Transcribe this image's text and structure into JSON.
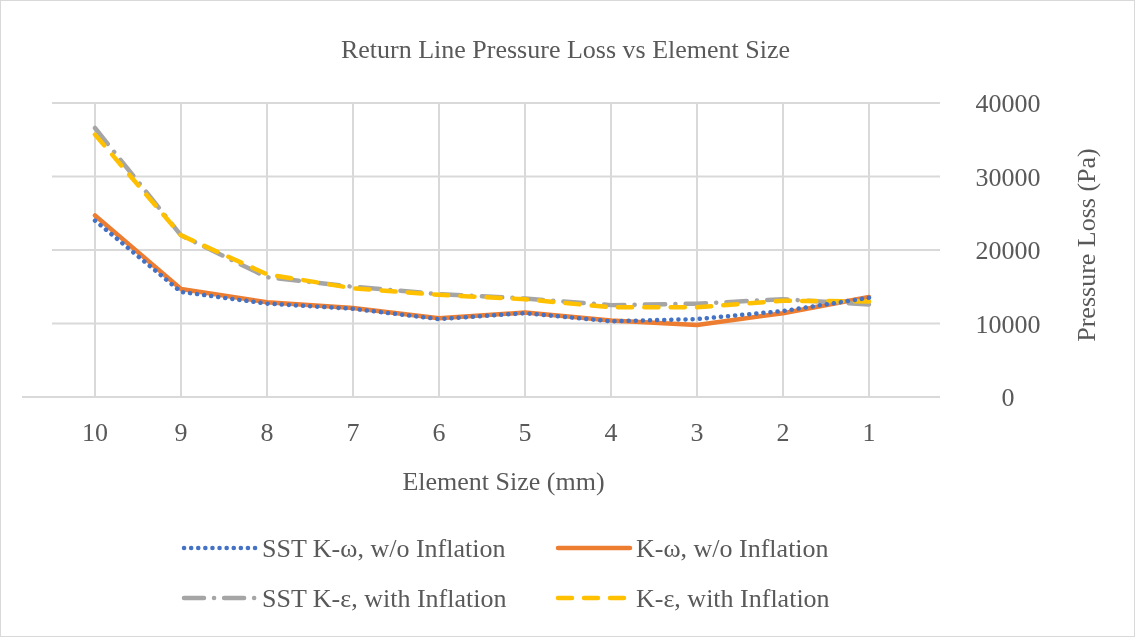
{
  "chart_data": {
    "type": "line",
    "title": "Return Line Pressure Loss vs Element Size",
    "xlabel": "Element Size (mm)",
    "ylabel": "Pressure Loss (Pa)",
    "categories": [
      "10",
      "9",
      "8",
      "7",
      "6",
      "5",
      "4",
      "3",
      "2",
      "1"
    ],
    "ylim": [
      0,
      40000
    ],
    "yticks": [
      0,
      10000,
      20000,
      30000,
      40000
    ],
    "grid": true,
    "legend": "bottom",
    "marker": "none",
    "series": [
      {
        "name": "SST K-ω, w/o Inflation",
        "color": "#4472c4",
        "line_style": "dotted",
        "values": [
          24000,
          14300,
          12700,
          12000,
          10600,
          11400,
          10300,
          10600,
          11700,
          13500
        ]
      },
      {
        "name": "K-ω, w/o Inflation",
        "color": "#ed7d31",
        "line_style": "solid",
        "values": [
          24700,
          14700,
          12900,
          12100,
          10700,
          11500,
          10400,
          9800,
          11400,
          13600
        ]
      },
      {
        "name": "SST K-ε, with Inflation",
        "color": "#a5a5a5",
        "line_style": "dashdot",
        "values": [
          36600,
          22000,
          16300,
          15000,
          14000,
          13400,
          12500,
          12700,
          13300,
          12600
        ]
      },
      {
        "name": "K-ε, with Inflation",
        "color": "#ffc000",
        "line_style": "dashed",
        "values": [
          35700,
          22000,
          16700,
          14800,
          13900,
          13300,
          12200,
          12200,
          13100,
          13000
        ]
      }
    ]
  }
}
